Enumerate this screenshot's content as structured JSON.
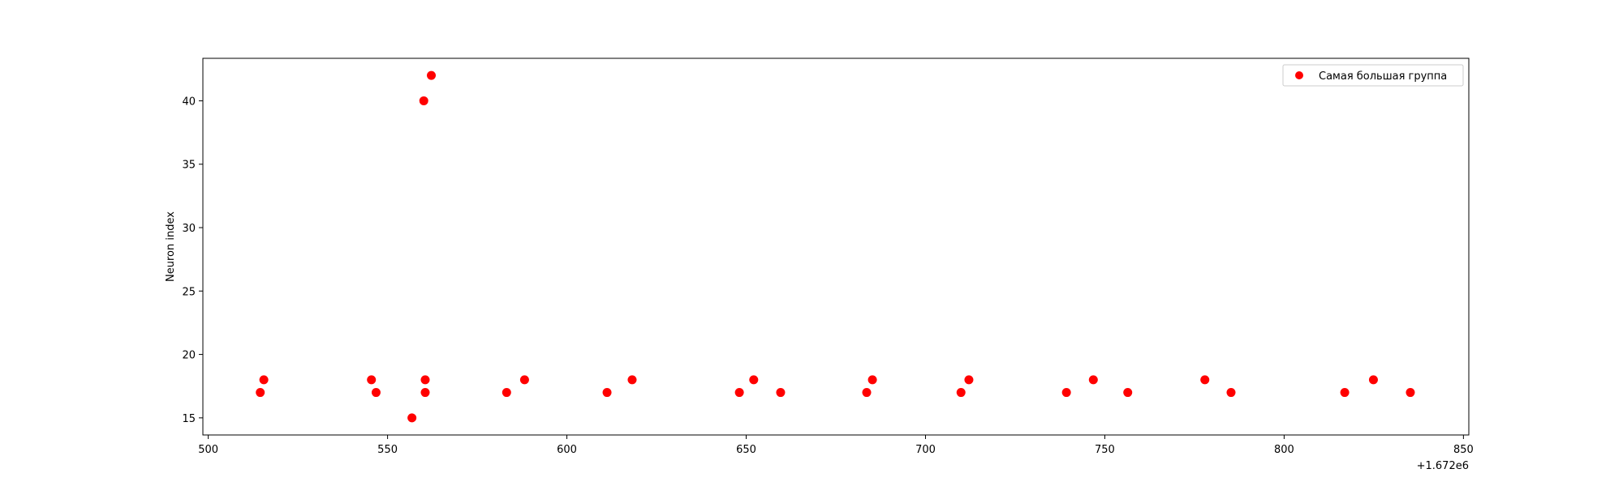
{
  "chart_data": {
    "type": "scatter",
    "title": "",
    "xlabel": "",
    "ylabel": "Neuron index",
    "x_offset_label": "+1.672e6",
    "xlim": [
      498.5,
      851.5
    ],
    "ylim": [
      13.65,
      43.35
    ],
    "xticks": [
      500,
      550,
      600,
      650,
      700,
      750,
      800,
      850
    ],
    "yticks": [
      15,
      20,
      25,
      30,
      35,
      40
    ],
    "grid": false,
    "legend_position": "top-right",
    "series": [
      {
        "name": "Самая большая группа",
        "color": "#ff0000",
        "x": [
          514.5,
          515.5,
          545.5,
          546.8,
          556.8,
          560.1,
          560.5,
          560.5,
          562.2,
          583.2,
          588.2,
          611.2,
          618.2,
          648.1,
          652.1,
          659.6,
          683.6,
          685.2,
          709.9,
          712.1,
          739.3,
          746.8,
          756.4,
          777.9,
          785.2,
          816.9,
          824.9,
          835.2
        ],
        "y": [
          17,
          18,
          18,
          17,
          15,
          40,
          18,
          17,
          42,
          17,
          18,
          17,
          18,
          17,
          18,
          17,
          17,
          18,
          17,
          18,
          17,
          18,
          17,
          18,
          17,
          17,
          18,
          17
        ]
      }
    ]
  }
}
